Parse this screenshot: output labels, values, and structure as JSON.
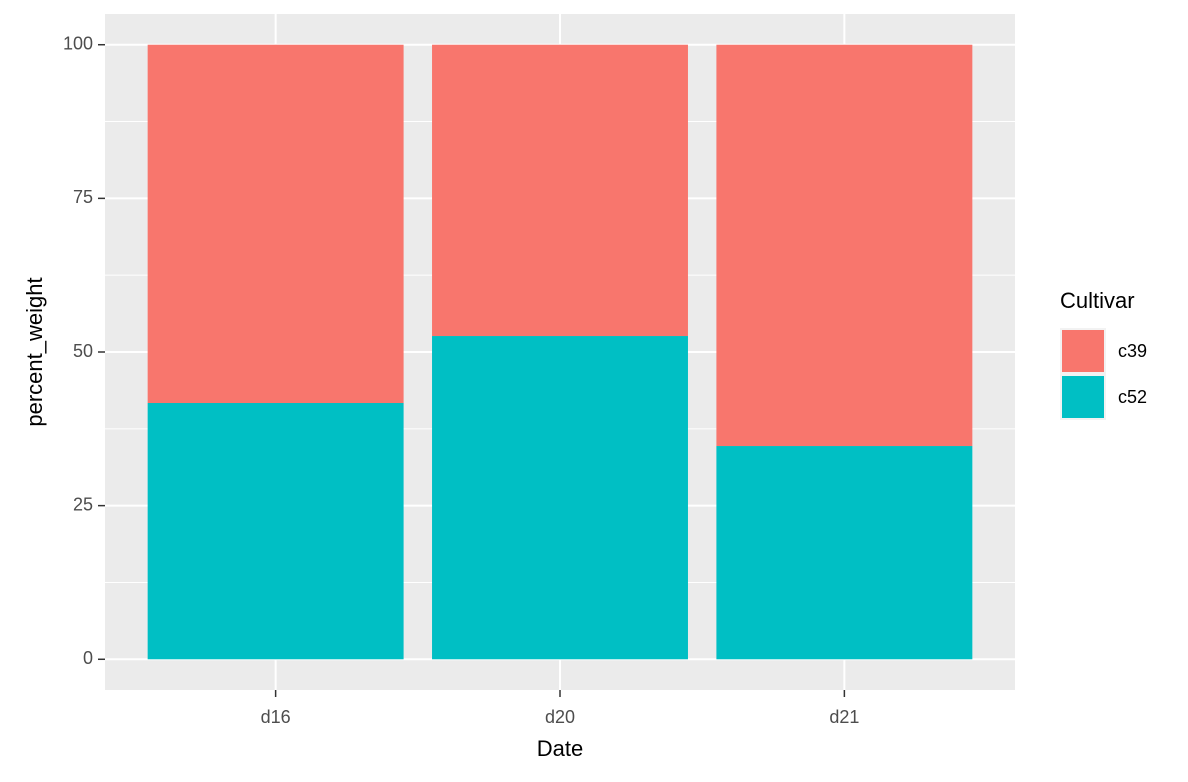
{
  "chart_data": {
    "type": "stacked_bar",
    "x_label": "Date",
    "y_label": "percent_weight",
    "categories": [
      "d16",
      "d20",
      "d21"
    ],
    "series": [
      {
        "name": "c39",
        "color": "#F8766D",
        "values": [
          58.3,
          47.4,
          65.3
        ]
      },
      {
        "name": "c52",
        "color": "#00BFC4",
        "values": [
          41.7,
          52.6,
          34.7
        ]
      }
    ],
    "stack_order": [
      "c52",
      "c39"
    ],
    "ylim": [
      -5,
      105
    ],
    "yticks": [
      0,
      25,
      50,
      75,
      100
    ],
    "grid": true,
    "legend_title": "Cultivar",
    "legend_position": "right"
  }
}
